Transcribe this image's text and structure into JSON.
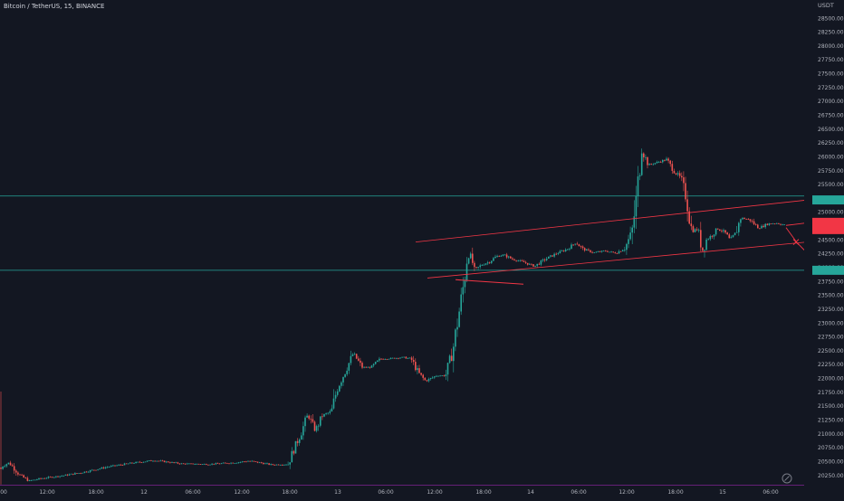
{
  "header": {
    "symbol": "Bitcoin / TetherUS, 15, BINANCE",
    "currency": "USDT"
  },
  "colors": {
    "background": "#131722",
    "up": "#26a69a",
    "down": "#ef5350",
    "level_line": "#26a69a",
    "channel_line": "#f23645",
    "price_tag_green": "#26a69a",
    "price_tag_red": "#f23645",
    "axis_text": "#b2b5be"
  },
  "chart_data": {
    "type": "candlestick",
    "y_ticks": [
      20250,
      20500,
      20750,
      21000,
      21250,
      21500,
      21750,
      22000,
      22250,
      22500,
      22750,
      23000,
      23250,
      23500,
      23750,
      24000,
      24250,
      24500,
      24750,
      25000,
      25250,
      25500,
      25750,
      26000,
      26250,
      26500,
      26750,
      27000,
      27250,
      27500,
      27750,
      28000,
      28250,
      28500
    ],
    "y_tick_labels": [
      "20250.00",
      "20500.00",
      "20750.00",
      "21000.00",
      "21250.00",
      "21500.00",
      "21750.00",
      "22000.00",
      "22250.00",
      "22500.00",
      "22750.00",
      "23000.00",
      "23250.00",
      "23500.00",
      "23750.00",
      "24000.00",
      "24250.00",
      "24500.00",
      "24750.00",
      "25000.00",
      "25250.00",
      "25500.00",
      "25750.00",
      "26000.00",
      "26250.00",
      "26500.00",
      "26750.00",
      "27000.00",
      "27250.00",
      "27500.00",
      "27750.00",
      "28000.00",
      "28250.00",
      "28500.00"
    ],
    "ylim": [
      20080,
      28730
    ],
    "x_tick_labels": [
      ":00",
      "12:00",
      "18:00",
      "12",
      "06:00",
      "12:00",
      "18:00",
      "13",
      "06:00",
      "12:00",
      "18:00",
      "14",
      "06:00",
      "12:00",
      "18:00",
      "15",
      "06:00"
    ],
    "x_tick_positions": [
      3,
      52,
      106,
      159,
      213,
      267,
      320,
      373,
      426,
      480,
      534,
      586,
      639,
      692,
      746,
      798,
      851
    ],
    "horizontal_levels": [
      25290,
      23950
    ],
    "channel_upper": [
      [
        459,
        24460
      ],
      [
        898,
        25230
      ]
    ],
    "channel_lower": [
      [
        472,
        23810
      ],
      [
        898,
        24470
      ]
    ],
    "support_segment": [
      [
        503,
        23780
      ],
      [
        578,
        23700
      ]
    ],
    "price_tags": [
      {
        "price": 25220,
        "color": "green"
      },
      {
        "price": 24750,
        "color": "red"
      },
      {
        "price": 23950,
        "color": "green"
      }
    ],
    "candles_keypoints": [
      [
        0,
        20390
      ],
      [
        10,
        20480
      ],
      [
        22,
        20250
      ],
      [
        32,
        20150
      ],
      [
        48,
        20200
      ],
      [
        68,
        20240
      ],
      [
        90,
        20300
      ],
      [
        118,
        20400
      ],
      [
        145,
        20470
      ],
      [
        170,
        20520
      ],
      [
        200,
        20460
      ],
      [
        230,
        20450
      ],
      [
        260,
        20480
      ],
      [
        275,
        20510
      ],
      [
        300,
        20440
      ],
      [
        318,
        20450
      ],
      [
        324,
        20700
      ],
      [
        332,
        21000
      ],
      [
        340,
        21350
      ],
      [
        348,
        21050
      ],
      [
        356,
        21330
      ],
      [
        366,
        21400
      ],
      [
        372,
        21800
      ],
      [
        382,
        22150
      ],
      [
        390,
        22450
      ],
      [
        400,
        22200
      ],
      [
        410,
        22200
      ],
      [
        420,
        22350
      ],
      [
        432,
        22360
      ],
      [
        445,
        22380
      ],
      [
        454,
        22350
      ],
      [
        462,
        22100
      ],
      [
        470,
        21950
      ],
      [
        482,
        22050
      ],
      [
        492,
        22050
      ],
      [
        500,
        22500
      ],
      [
        506,
        23100
      ],
      [
        512,
        23700
      ],
      [
        516,
        24200
      ],
      [
        520,
        24200
      ],
      [
        524,
        23950
      ],
      [
        532,
        24050
      ],
      [
        540,
        24100
      ],
      [
        548,
        24200
      ],
      [
        556,
        24230
      ],
      [
        566,
        24150
      ],
      [
        578,
        24100
      ],
      [
        590,
        24020
      ],
      [
        602,
        24150
      ],
      [
        614,
        24250
      ],
      [
        626,
        24330
      ],
      [
        636,
        24450
      ],
      [
        644,
        24330
      ],
      [
        656,
        24270
      ],
      [
        668,
        24300
      ],
      [
        680,
        24260
      ],
      [
        690,
        24350
      ],
      [
        698,
        24650
      ],
      [
        704,
        25400
      ],
      [
        708,
        26150
      ],
      [
        716,
        25850
      ],
      [
        726,
        25900
      ],
      [
        736,
        25950
      ],
      [
        744,
        25750
      ],
      [
        752,
        25600
      ],
      [
        758,
        25250
      ],
      [
        764,
        24650
      ],
      [
        770,
        24700
      ],
      [
        776,
        24300
      ],
      [
        780,
        24500
      ],
      [
        786,
        24580
      ],
      [
        792,
        24700
      ],
      [
        800,
        24640
      ],
      [
        806,
        24500
      ],
      [
        812,
        24600
      ],
      [
        818,
        24900
      ],
      [
        828,
        24860
      ],
      [
        838,
        24710
      ],
      [
        848,
        24790
      ],
      [
        858,
        24800
      ],
      [
        868,
        24760
      ]
    ],
    "projection": [
      [
        868,
        24760
      ],
      [
        878,
        24780
      ],
      [
        898,
        24820
      ]
    ],
    "projection_down": [
      [
        868,
        24720
      ],
      [
        880,
        24450
      ],
      [
        898,
        24150
      ]
    ]
  }
}
